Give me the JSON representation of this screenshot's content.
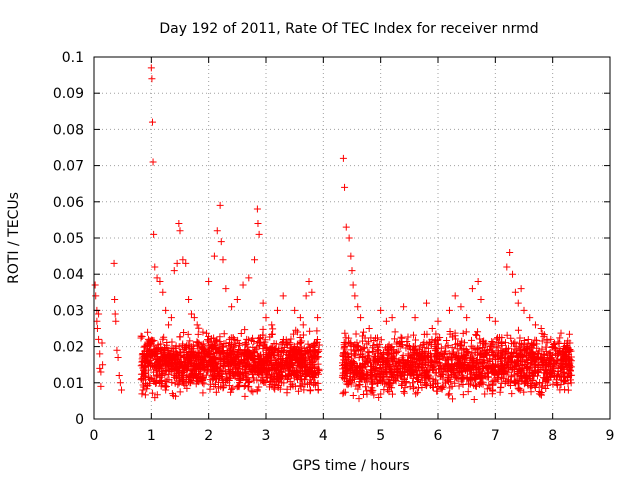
{
  "chart_data": {
    "type": "scatter",
    "title": "Day 192 of 2011, Rate Of TEC Index for receiver nrmd",
    "xlabel": "GPS time / hours",
    "ylabel": "ROTI / TECUs",
    "xlim": [
      0,
      9
    ],
    "ylim": [
      0,
      0.1
    ],
    "xticks": [
      "0",
      "1",
      "2",
      "3",
      "4",
      "5",
      "6",
      "7",
      "8",
      "9"
    ],
    "yticks": [
      "0",
      "0.01",
      "0.02",
      "0.03",
      "0.04",
      "0.05",
      "0.06",
      "0.07",
      "0.08",
      "0.09",
      "0.1"
    ],
    "grid": true,
    "marker": "+",
    "color": "#ff0000",
    "series": [
      {
        "points": [
          [
            0.02,
            0.037
          ],
          [
            0.03,
            0.034
          ],
          [
            0.05,
            0.03
          ],
          [
            0.05,
            0.027
          ],
          [
            0.06,
            0.025
          ],
          [
            0.08,
            0.029
          ],
          [
            0.08,
            0.022
          ],
          [
            0.1,
            0.018
          ],
          [
            0.1,
            0.014
          ],
          [
            0.12,
            0.013
          ],
          [
            0.12,
            0.009
          ],
          [
            0.14,
            0.021
          ],
          [
            0.15,
            0.015
          ],
          [
            0.35,
            0.043
          ],
          [
            0.36,
            0.033
          ],
          [
            0.37,
            0.029
          ],
          [
            0.38,
            0.027
          ],
          [
            0.4,
            0.019
          ],
          [
            0.42,
            0.017
          ],
          [
            0.44,
            0.012
          ],
          [
            0.46,
            0.01
          ],
          [
            0.48,
            0.008
          ],
          [
            0.85,
            0.016
          ],
          [
            0.9,
            0.013
          ],
          [
            0.95,
            0.022
          ],
          [
            1.0,
            0.097
          ],
          [
            1.01,
            0.094
          ],
          [
            1.02,
            0.082
          ],
          [
            1.03,
            0.071
          ],
          [
            1.04,
            0.051
          ],
          [
            1.06,
            0.042
          ],
          [
            1.1,
            0.039
          ],
          [
            1.15,
            0.038
          ],
          [
            1.2,
            0.035
          ],
          [
            1.25,
            0.03
          ],
          [
            1.3,
            0.026
          ],
          [
            1.35,
            0.028
          ],
          [
            1.4,
            0.041
          ],
          [
            1.45,
            0.043
          ],
          [
            1.48,
            0.054
          ],
          [
            1.5,
            0.052
          ],
          [
            1.55,
            0.044
          ],
          [
            1.6,
            0.043
          ],
          [
            1.65,
            0.033
          ],
          [
            1.7,
            0.029
          ],
          [
            1.75,
            0.028
          ],
          [
            1.8,
            0.026
          ],
          [
            1.9,
            0.024
          ],
          [
            2.0,
            0.038
          ],
          [
            2.1,
            0.045
          ],
          [
            2.15,
            0.052
          ],
          [
            2.2,
            0.059
          ],
          [
            2.22,
            0.049
          ],
          [
            2.25,
            0.044
          ],
          [
            2.3,
            0.036
          ],
          [
            2.4,
            0.031
          ],
          [
            2.5,
            0.033
          ],
          [
            2.6,
            0.037
          ],
          [
            2.7,
            0.039
          ],
          [
            2.8,
            0.044
          ],
          [
            2.85,
            0.058
          ],
          [
            2.86,
            0.054
          ],
          [
            2.88,
            0.051
          ],
          [
            2.95,
            0.032
          ],
          [
            3.0,
            0.028
          ],
          [
            3.1,
            0.026
          ],
          [
            3.2,
            0.03
          ],
          [
            3.3,
            0.034
          ],
          [
            3.5,
            0.03
          ],
          [
            3.6,
            0.028
          ],
          [
            3.65,
            0.026
          ],
          [
            3.7,
            0.034
          ],
          [
            3.75,
            0.038
          ],
          [
            3.8,
            0.035
          ],
          [
            3.9,
            0.028
          ],
          [
            4.35,
            0.072
          ],
          [
            4.37,
            0.064
          ],
          [
            4.4,
            0.053
          ],
          [
            4.45,
            0.05
          ],
          [
            4.48,
            0.045
          ],
          [
            4.5,
            0.041
          ],
          [
            4.52,
            0.037
          ],
          [
            4.55,
            0.034
          ],
          [
            4.6,
            0.031
          ],
          [
            4.65,
            0.028
          ],
          [
            4.7,
            0.024
          ],
          [
            4.8,
            0.025
          ],
          [
            5.0,
            0.03
          ],
          [
            5.1,
            0.027
          ],
          [
            5.2,
            0.028
          ],
          [
            5.4,
            0.031
          ],
          [
            5.6,
            0.028
          ],
          [
            5.8,
            0.032
          ],
          [
            5.9,
            0.025
          ],
          [
            6.0,
            0.027
          ],
          [
            6.2,
            0.03
          ],
          [
            6.3,
            0.034
          ],
          [
            6.4,
            0.031
          ],
          [
            6.5,
            0.028
          ],
          [
            6.6,
            0.036
          ],
          [
            6.7,
            0.038
          ],
          [
            6.75,
            0.033
          ],
          [
            6.9,
            0.028
          ],
          [
            7.0,
            0.027
          ],
          [
            7.2,
            0.042
          ],
          [
            7.25,
            0.046
          ],
          [
            7.3,
            0.04
          ],
          [
            7.35,
            0.035
          ],
          [
            7.4,
            0.032
          ],
          [
            7.45,
            0.036
          ],
          [
            7.5,
            0.03
          ],
          [
            7.6,
            0.028
          ],
          [
            7.7,
            0.026
          ],
          [
            7.8,
            0.025
          ],
          [
            7.9,
            0.022
          ],
          [
            8.0,
            0.02
          ],
          [
            8.1,
            0.018
          ],
          [
            8.2,
            0.02
          ],
          [
            8.3,
            0.021
          ]
        ],
        "dense_bands": [
          {
            "x": [
              0.82,
              3.93
            ],
            "y": [
              0.005,
              0.026
            ],
            "count": 1500
          },
          {
            "x": [
              4.33,
              8.33
            ],
            "y": [
              0.004,
              0.026
            ],
            "count": 1600
          }
        ]
      }
    ]
  }
}
